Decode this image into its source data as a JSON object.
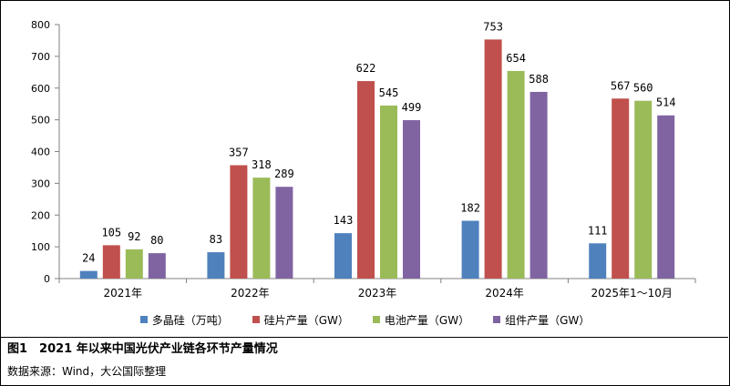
{
  "chart_data": {
    "type": "bar",
    "categories": [
      "2021年",
      "2022年",
      "2023年",
      "2024年",
      "2025年1～10月"
    ],
    "series": [
      {
        "name": "多晶硅（万吨）",
        "values": [
          24,
          83,
          143,
          182,
          111
        ],
        "color": "#4f81bd"
      },
      {
        "name": "硅片产量（GW）",
        "values": [
          105,
          357,
          622,
          753,
          567
        ],
        "color": "#c0504d"
      },
      {
        "name": "电池产量（GW）",
        "values": [
          92,
          318,
          545,
          654,
          560
        ],
        "color": "#9bbb59"
      },
      {
        "name": "组件产量（GW）",
        "values": [
          80,
          289,
          499,
          588,
          514
        ],
        "color": "#8064a2"
      }
    ],
    "ylim": [
      0,
      800
    ],
    "yticks": [
      0,
      100,
      200,
      300,
      400,
      500,
      600,
      700,
      800
    ],
    "grid": false,
    "legend_position": "bottom",
    "data_labels": true
  },
  "caption": "图1　2021 年以来中国光伏产业链各环节产量情况",
  "source": "数据来源：Wind，大公国际整理"
}
